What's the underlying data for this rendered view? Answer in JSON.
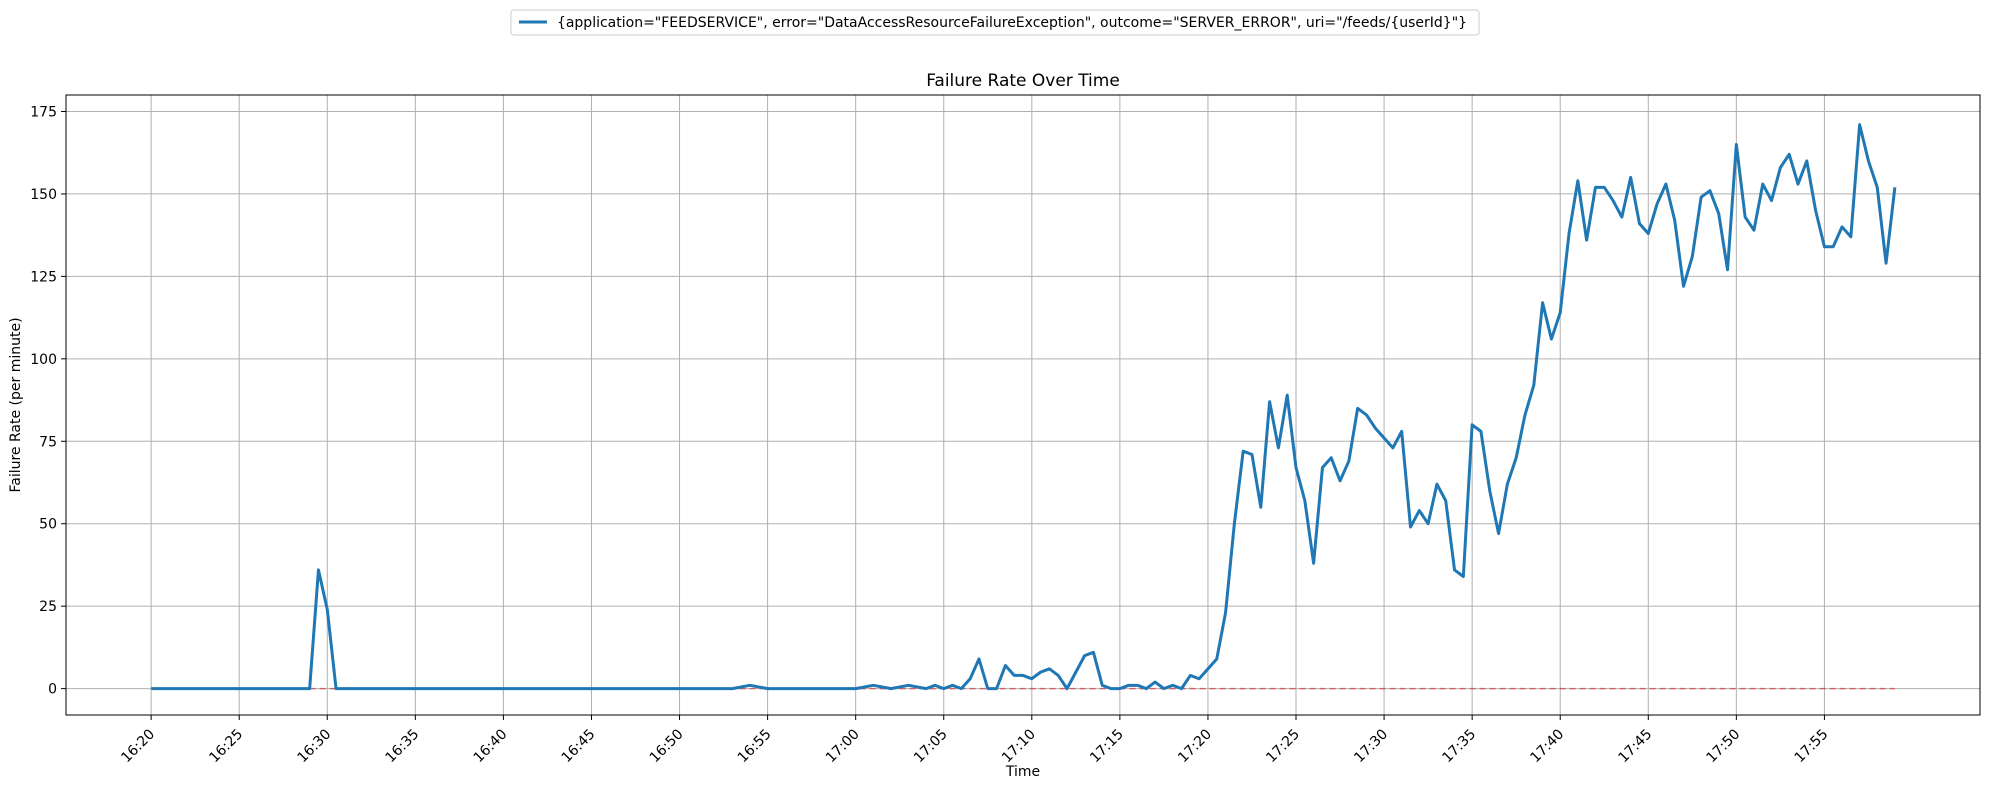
{
  "chart_data": {
    "type": "line",
    "title": "Failure Rate Over Time",
    "xlabel": "Time",
    "ylabel": "Failure Rate (per minute)",
    "x_range": [
      "16:15:10",
      "18:03:50"
    ],
    "ylim": [
      -8,
      180
    ],
    "grid": true,
    "legend_position": "top-center (outside plot)",
    "x_ticks": [
      "16:20",
      "16:25",
      "16:30",
      "16:35",
      "16:40",
      "16:45",
      "16:50",
      "16:55",
      "17:00",
      "17:05",
      "17:10",
      "17:15",
      "17:20",
      "17:25",
      "17:30",
      "17:35",
      "17:40",
      "17:45",
      "17:50",
      "17:55"
    ],
    "y_ticks": [
      0,
      25,
      50,
      75,
      100,
      125,
      150,
      175
    ],
    "series": [
      {
        "name": "{application=\"FEEDSERVICE\", error=\"DataAccessResourceFailureException\", outcome=\"SERVER_ERROR\", uri=\"/feeds/{userId}\"}",
        "color": "#1f77b4",
        "style": "solid",
        "points": [
          [
            "16:20",
            0
          ],
          [
            "16:21",
            0
          ],
          [
            "16:22",
            0
          ],
          [
            "16:23",
            0
          ],
          [
            "16:24",
            0
          ],
          [
            "16:25",
            0
          ],
          [
            "16:26",
            0
          ],
          [
            "16:27",
            0
          ],
          [
            "16:28",
            0
          ],
          [
            "16:29",
            0
          ],
          [
            "16:29:30",
            36
          ],
          [
            "16:30",
            24
          ],
          [
            "16:30:30",
            0
          ],
          [
            "16:31",
            0
          ],
          [
            "16:35",
            0
          ],
          [
            "16:40",
            0
          ],
          [
            "16:45",
            0
          ],
          [
            "16:50",
            0
          ],
          [
            "16:53",
            0
          ],
          [
            "16:54",
            1
          ],
          [
            "16:55",
            0
          ],
          [
            "17:00",
            0
          ],
          [
            "17:01",
            1
          ],
          [
            "17:02",
            0
          ],
          [
            "17:03",
            1
          ],
          [
            "17:04",
            0
          ],
          [
            "17:04:30",
            1
          ],
          [
            "17:05",
            0
          ],
          [
            "17:05:30",
            1
          ],
          [
            "17:06",
            0
          ],
          [
            "17:06:30",
            3
          ],
          [
            "17:07",
            9
          ],
          [
            "17:07:30",
            0
          ],
          [
            "17:08",
            0
          ],
          [
            "17:08:30",
            7
          ],
          [
            "17:09",
            4
          ],
          [
            "17:09:30",
            4
          ],
          [
            "17:10",
            3
          ],
          [
            "17:10:30",
            5
          ],
          [
            "17:11",
            6
          ],
          [
            "17:11:30",
            4
          ],
          [
            "17:12",
            0
          ],
          [
            "17:12:30",
            5
          ],
          [
            "17:13",
            10
          ],
          [
            "17:13:30",
            11
          ],
          [
            "17:14",
            1
          ],
          [
            "17:14:30",
            0
          ],
          [
            "17:15",
            0
          ],
          [
            "17:15:30",
            1
          ],
          [
            "17:16",
            1
          ],
          [
            "17:16:30",
            0
          ],
          [
            "17:17",
            2
          ],
          [
            "17:17:30",
            0
          ],
          [
            "17:18",
            1
          ],
          [
            "17:18:30",
            0
          ],
          [
            "17:19",
            4
          ],
          [
            "17:19:30",
            3
          ],
          [
            "17:20",
            6
          ],
          [
            "17:20:30",
            9
          ],
          [
            "17:21",
            23
          ],
          [
            "17:21:30",
            50
          ],
          [
            "17:22",
            72
          ],
          [
            "17:22:30",
            71
          ],
          [
            "17:23",
            55
          ],
          [
            "17:23:30",
            87
          ],
          [
            "17:24",
            73
          ],
          [
            "17:24:30",
            89
          ],
          [
            "17:25",
            67
          ],
          [
            "17:25:30",
            57
          ],
          [
            "17:26",
            38
          ],
          [
            "17:26:30",
            67
          ],
          [
            "17:27",
            70
          ],
          [
            "17:27:30",
            63
          ],
          [
            "17:28",
            69
          ],
          [
            "17:28:30",
            85
          ],
          [
            "17:29",
            83
          ],
          [
            "17:29:30",
            79
          ],
          [
            "17:30",
            76
          ],
          [
            "17:30:30",
            73
          ],
          [
            "17:31",
            78
          ],
          [
            "17:31:30",
            49
          ],
          [
            "17:32",
            54
          ],
          [
            "17:32:30",
            50
          ],
          [
            "17:33",
            62
          ],
          [
            "17:33:30",
            57
          ],
          [
            "17:34",
            36
          ],
          [
            "17:34:30",
            34
          ],
          [
            "17:35",
            80
          ],
          [
            "17:35:30",
            78
          ],
          [
            "17:36",
            60
          ],
          [
            "17:36:30",
            47
          ],
          [
            "17:37",
            62
          ],
          [
            "17:37:30",
            70
          ],
          [
            "17:38",
            83
          ],
          [
            "17:38:30",
            92
          ],
          [
            "17:39",
            117
          ],
          [
            "17:39:30",
            106
          ],
          [
            "17:40",
            114
          ],
          [
            "17:40:30",
            138
          ],
          [
            "17:41",
            154
          ],
          [
            "17:41:30",
            136
          ],
          [
            "17:42",
            152
          ],
          [
            "17:42:30",
            152
          ],
          [
            "17:43",
            148
          ],
          [
            "17:43:30",
            143
          ],
          [
            "17:44",
            155
          ],
          [
            "17:44:30",
            141
          ],
          [
            "17:45",
            138
          ],
          [
            "17:45:30",
            147
          ],
          [
            "17:46",
            153
          ],
          [
            "17:46:30",
            142
          ],
          [
            "17:47",
            122
          ],
          [
            "17:47:30",
            131
          ],
          [
            "17:48",
            149
          ],
          [
            "17:48:30",
            151
          ],
          [
            "17:49",
            144
          ],
          [
            "17:49:30",
            127
          ],
          [
            "17:50",
            165
          ],
          [
            "17:50:30",
            143
          ],
          [
            "17:51",
            139
          ],
          [
            "17:51:30",
            153
          ],
          [
            "17:52",
            148
          ],
          [
            "17:52:30",
            158
          ],
          [
            "17:53",
            162
          ],
          [
            "17:53:30",
            153
          ],
          [
            "17:54",
            160
          ],
          [
            "17:54:30",
            145
          ],
          [
            "17:55",
            134
          ],
          [
            "17:55:30",
            134
          ],
          [
            "17:56",
            140
          ],
          [
            "17:56:30",
            137
          ],
          [
            "17:57",
            171
          ],
          [
            "17:57:30",
            160
          ],
          [
            "17:58",
            152
          ],
          [
            "17:58:30",
            129
          ],
          [
            "17:59",
            152
          ]
        ]
      },
      {
        "color": "#d62728",
        "style": "dashed",
        "points": [
          [
            "16:29",
            0
          ],
          [
            "17:59",
            0
          ]
        ]
      }
    ]
  }
}
